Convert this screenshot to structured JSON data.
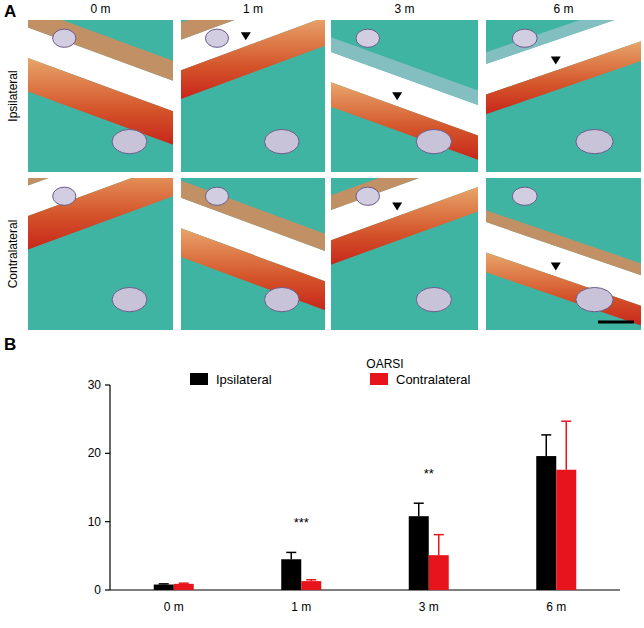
{
  "figure": {
    "panel_labels": [
      "A",
      "B"
    ],
    "columns": [
      "0 m",
      "1 m",
      "3 m",
      "6 m"
    ],
    "rows": [
      "Ipsilateral",
      "Contralateral"
    ]
  },
  "chart_data": {
    "type": "bar",
    "title": "OARSI",
    "categories": [
      "0 m",
      "1 m",
      "3 m",
      "6 m"
    ],
    "series": [
      {
        "name": "Ipsilateral",
        "color": "#000000",
        "values": [
          0.8,
          4.5,
          10.8,
          19.6
        ],
        "errors": [
          0.1,
          1.0,
          1.9,
          3.1
        ]
      },
      {
        "name": "Contralateral",
        "color": "#e8141b",
        "values": [
          0.9,
          1.3,
          5.1,
          17.6
        ],
        "errors": [
          0.1,
          0.2,
          3.0,
          7.1
        ]
      }
    ],
    "ylim": [
      0,
      30
    ],
    "yticks": [
      0,
      10,
      20,
      30
    ],
    "legend": "top",
    "annotations": [
      {
        "text": "***",
        "category": "1 m"
      },
      {
        "text": "**",
        "category": "3 m"
      }
    ]
  }
}
